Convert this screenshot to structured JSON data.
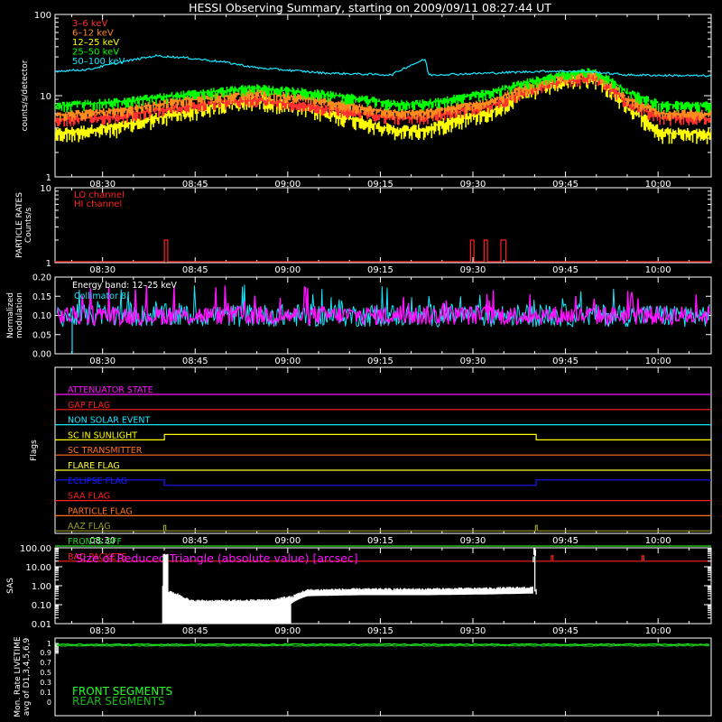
{
  "title": "HESSI Observing Summary, starting on 2009/09/11 08:27:44 UT",
  "colors": {
    "axis": "#ffffff",
    "e3_6": "#ff3030",
    "e6_12": "#ff8a1e",
    "e12_25": "#ffff00",
    "e25_50": "#00ff00",
    "e50_100": "#18e6ff",
    "lo": "#ff2020",
    "hi": "#ff2020",
    "collimator": "#18e6ff",
    "mod_magenta": "#ff10ff",
    "sas_line": "#ffffff",
    "sas_title": "#ff10ff",
    "front": "#22ff22",
    "rear": "#18bb18"
  },
  "chart_data": [
    {
      "type": "line",
      "ylabel": "counts/s/detector",
      "yscale": "log",
      "ylim": [
        1,
        100
      ],
      "yticks": [
        "1",
        "10",
        "100"
      ],
      "xticks": [
        "08:30",
        "08:45",
        "09:00",
        "09:15",
        "09:30",
        "09:45",
        "10:00"
      ],
      "legend_placement": "top-left",
      "series": [
        {
          "name": "3–6 keV",
          "color_key": "e3_6",
          "t": [
            0,
            20,
            40,
            60,
            80,
            100,
            110,
            130,
            150,
            160,
            170,
            180,
            195
          ],
          "y": [
            5,
            5.6,
            7.5,
            9,
            7,
            5.4,
            5.4,
            7.5,
            15,
            17,
            8,
            5.3,
            5.2
          ]
        },
        {
          "name": "6–12 keV",
          "color_key": "e6_12",
          "t": [
            0,
            20,
            40,
            60,
            80,
            100,
            110,
            130,
            150,
            160,
            170,
            180,
            195
          ],
          "y": [
            5.8,
            6.5,
            9,
            11,
            8.5,
            6.2,
            6.2,
            8.5,
            17,
            19,
            9,
            6.1,
            6
          ]
        },
        {
          "name": "12–25 keV",
          "color_key": "e12_25",
          "t": [
            0,
            20,
            40,
            60,
            80,
            100,
            110,
            130,
            150,
            160,
            170,
            180,
            195
          ],
          "y": [
            3.4,
            4.2,
            6.5,
            9,
            6.3,
            3.8,
            3.8,
            6.5,
            15,
            17,
            7,
            3.5,
            3.4
          ]
        },
        {
          "name": "25–50 keV",
          "color_key": "e25_50",
          "t": [
            0,
            20,
            40,
            60,
            80,
            100,
            110,
            130,
            150,
            160,
            170,
            180,
            195
          ],
          "y": [
            7.5,
            8.5,
            10.5,
            12.5,
            10.5,
            8,
            8,
            11,
            18,
            20,
            11,
            7.8,
            7.6
          ]
        },
        {
          "name": "50–100 keV",
          "color_key": "e50_100",
          "t": [
            0,
            10,
            20,
            30,
            40,
            50,
            60,
            80,
            100,
            110,
            111,
            130,
            145,
            156,
            157,
            170,
            195
          ],
          "y": [
            20,
            21,
            26,
            31,
            29,
            26,
            22,
            19,
            18,
            28,
            18,
            19,
            20,
            20,
            20,
            18,
            17.5
          ]
        }
      ]
    },
    {
      "type": "line",
      "ylabel": "PARTICLE RATES\nCounts/s",
      "yscale": "log",
      "ylim": [
        1,
        10
      ],
      "yticks": [
        "1",
        "10"
      ],
      "xticks": [
        "08:30",
        "08:45",
        "09:00",
        "09:15",
        "09:30",
        "09:45",
        "10:00"
      ],
      "series": [
        {
          "name": "LO channel",
          "color_key": "lo",
          "baseline": 1,
          "spikes": [
            [
              32.5,
              33.5,
              2
            ],
            [
              123.5,
              124.5,
              2
            ],
            [
              127.5,
              128.5,
              2
            ],
            [
              132.5,
              134,
              2
            ]
          ]
        },
        {
          "name": "HI channel",
          "color_key": "hi",
          "baseline": 1,
          "spikes": []
        }
      ]
    },
    {
      "type": "line",
      "ylabel": "Normalized\nmodulation",
      "yscale": "linear",
      "ylim": [
        0,
        0.2
      ],
      "yticks": [
        "0.00",
        "0.05",
        "0.10",
        "0.15",
        "0.20"
      ],
      "xticks": [
        "08:30",
        "08:45",
        "09:00",
        "09:15",
        "09:30",
        "09:45",
        "10:00"
      ],
      "annotation": "Energy band: 12–25 keV",
      "series": [
        {
          "name": "Collimator 8",
          "color_key": "collimator",
          "mean": 0.1,
          "spread": 0.03
        },
        {
          "name": "",
          "color_key": "mod_magenta",
          "mean": 0.1,
          "spread": 0.025
        }
      ]
    },
    {
      "type": "line",
      "ylabel": "Flags",
      "xticks": [
        "08:30",
        "08:45",
        "09:00",
        "09:15",
        "09:30",
        "09:45",
        "10:00"
      ],
      "flags": [
        {
          "name": "ATTENUATOR STATE",
          "color": "#ff10ff",
          "on": []
        },
        {
          "name": "GAP FLAG",
          "color": "#ff2020",
          "on": []
        },
        {
          "name": "NON SOLAR EVENT",
          "color": "#18e6ff",
          "on": []
        },
        {
          "name": "SC IN SUNLIGHT",
          "color": "#ffff00",
          "on": [
            [
              32.5,
              143
            ]
          ]
        },
        {
          "name": "SC TRANSMITTER",
          "color": "#ff7020",
          "on": []
        },
        {
          "name": "FLARE FLAG",
          "color": "#ffff30",
          "on": []
        },
        {
          "name": "ECLIPSE FLAG",
          "color": "#1818ff",
          "on": [
            [
              0,
              32.5
            ],
            [
              143,
              195
            ]
          ]
        },
        {
          "name": "SAA FLAG",
          "color": "#ff2020",
          "on": []
        },
        {
          "name": "PARTICLE FLAG",
          "color": "#ff7020",
          "on": []
        },
        {
          "name": "AAZ FLAG",
          "color": "#9c9c28",
          "on": [
            [
              32.3,
              32.9
            ],
            [
              142.8,
              143.3
            ]
          ]
        },
        {
          "name": "FRONTS OFF",
          "color": "#22dd22",
          "on": []
        },
        {
          "name": "BAD PACKETS",
          "color": "#ff2020",
          "on": [
            [
              147.5,
              148
            ],
            [
              174.5,
              175
            ]
          ]
        }
      ]
    },
    {
      "type": "line",
      "ylabel": "SAS",
      "title": "Size of Reduced Triangle (absolute value) [arcsec]",
      "yscale": "log",
      "ylim": [
        0.01,
        100
      ],
      "yticks": [
        "0.01",
        "0.10",
        "1.00",
        "10.00",
        "100.00"
      ],
      "xticks": [
        "08:30",
        "08:45",
        "09:00",
        "09:15",
        "09:30",
        "09:45",
        "10:00"
      ],
      "series": [
        {
          "name": "",
          "color_key": "sas_line",
          "t": [
            32,
            32.5,
            33,
            40,
            55,
            65,
            70,
            75,
            90,
            110,
            130,
            142,
            142.6,
            143
          ],
          "y": [
            0.5,
            30,
            0.3,
            0.09,
            0.09,
            0.1,
            0.15,
            0.4,
            0.45,
            0.45,
            0.5,
            0.55,
            100,
            0.5
          ]
        }
      ]
    },
    {
      "type": "line",
      "ylabel": "Mon. Rate LIVETIME\navg of D1,3,4,5,6,9",
      "yscale": "linear",
      "ylim": [
        0,
        1
      ],
      "yticks": [
        "0",
        "0.1",
        "0.2",
        "0.3",
        "0.4",
        "0.5",
        "0.6",
        "0.7",
        "0.8",
        "0.9",
        "1"
      ],
      "xticks": [],
      "series": [
        {
          "name": "FRONT SEGMENTS",
          "color_key": "front",
          "mean": 0.97
        },
        {
          "name": "REAR SEGMENTS",
          "color_key": "rear",
          "mean": 0.96
        }
      ]
    }
  ]
}
